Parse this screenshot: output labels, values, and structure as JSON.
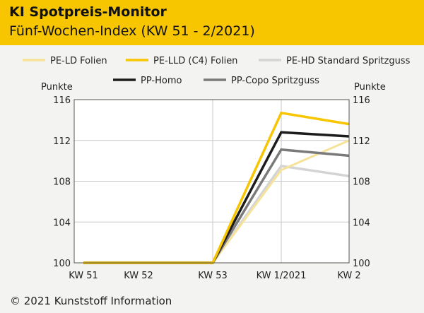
{
  "header": {
    "title": "KI Spotpreis-Monitor",
    "subtitle": "Fünf-Wochen-Index (KW 51 - 2/2021)"
  },
  "footer": {
    "copyright": "© 2021 Kunststoff Information"
  },
  "chart_data": {
    "type": "line",
    "categories": [
      "KW 51",
      "KW 52",
      "KW 53",
      "KW 1/2021",
      "KW 2"
    ],
    "ylabel_left": "Punkte",
    "ylabel_right": "Punkte",
    "ylim": [
      100,
      116
    ],
    "yticks": [
      100,
      104,
      108,
      112,
      116
    ],
    "grid": true,
    "legend_position": "top",
    "series": [
      {
        "name": "PE-LD Folien",
        "color": "#f7e29a",
        "width": 3,
        "values": [
          100,
          100,
          100,
          109.1,
          112.0
        ]
      },
      {
        "name": "PE-LLD (C4) Folien",
        "color": "#f7c600",
        "width": 3.5,
        "values": [
          100,
          100,
          100,
          114.7,
          113.6
        ]
      },
      {
        "name": "PE-HD Standard Spritzguss",
        "color": "#d4d4d4",
        "width": 3.5,
        "values": [
          100,
          100,
          100,
          109.5,
          108.5
        ]
      },
      {
        "name": "PP-Homo",
        "color": "#1c1c1c",
        "width": 3.5,
        "values": [
          100,
          100,
          100,
          112.8,
          112.4
        ]
      },
      {
        "name": "PP-Copo Spritzguss",
        "color": "#7a7a7a",
        "width": 3.5,
        "values": [
          100,
          100,
          100,
          111.1,
          110.5
        ]
      }
    ]
  }
}
